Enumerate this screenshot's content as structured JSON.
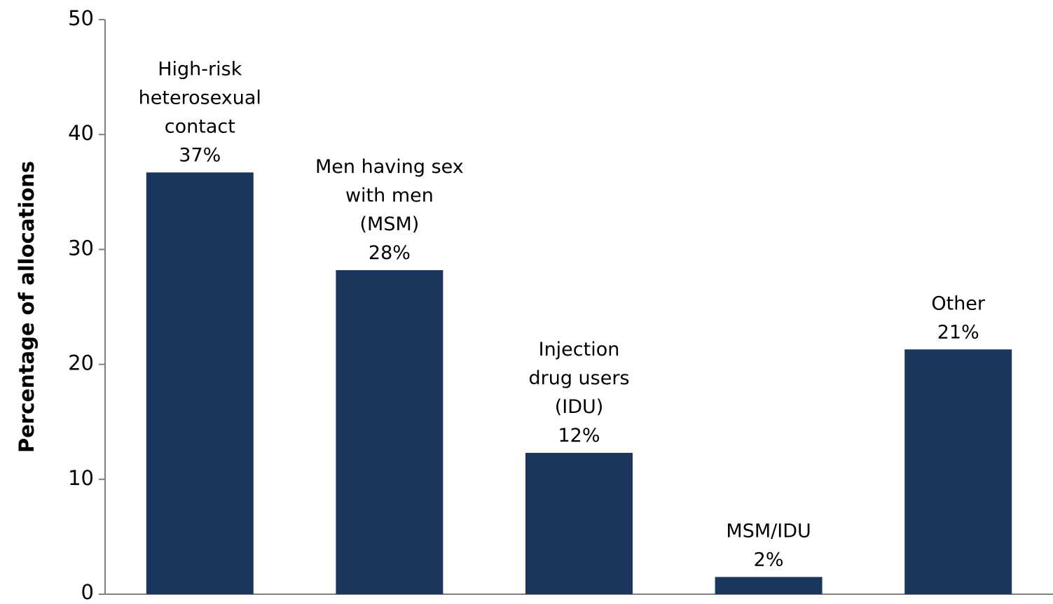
{
  "chart_data": {
    "type": "bar",
    "categories": [
      "High-risk heterosexual contact",
      "Men having sex with men (MSM)",
      "Injection drug users (IDU)",
      "MSM/IDU",
      "Other"
    ],
    "values": [
      36.7,
      28.2,
      12.3,
      1.5,
      21.3
    ],
    "data_labels": [
      {
        "lines": [
          "High-risk",
          "heterosexual",
          "contact",
          "37%"
        ]
      },
      {
        "lines": [
          "Men having sex",
          "with men",
          "(MSM)",
          "28%"
        ]
      },
      {
        "lines": [
          "Injection",
          "drug users",
          "(IDU)",
          "12%"
        ]
      },
      {
        "lines": [
          "MSM/IDU",
          "2%"
        ]
      },
      {
        "lines": [
          "Other",
          "21%"
        ]
      }
    ],
    "ylabel": "Percentage of allocations",
    "xlabel": "",
    "ylim": [
      0,
      50
    ],
    "yticks": [
      0,
      10,
      20,
      30,
      40,
      50
    ],
    "grid": false,
    "bar_color": "#1b365d",
    "axis_color": "#7f7f7f"
  }
}
